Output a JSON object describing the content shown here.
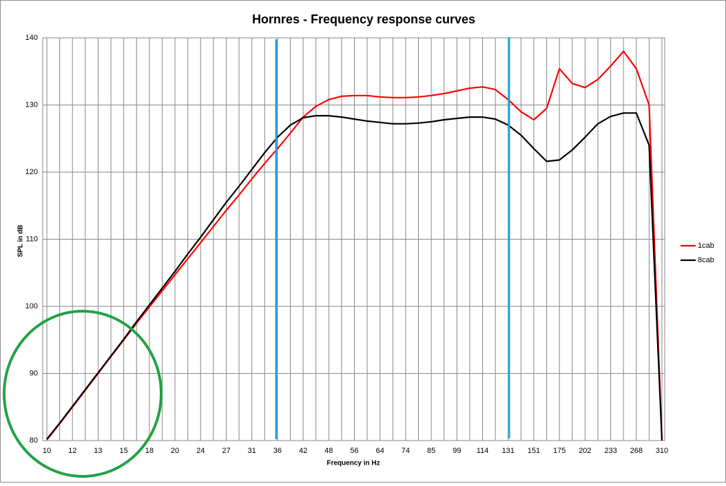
{
  "chart_data": {
    "type": "line",
    "title": "Hornres - Frequency response curves",
    "x_label": "Frequency in Hz",
    "y_label": "SPL in dB",
    "categories": [
      "10",
      null,
      "12",
      null,
      "13",
      null,
      "15",
      null,
      "18",
      null,
      "20",
      null,
      "24",
      null,
      "27",
      null,
      "31",
      null,
      "36",
      null,
      "42",
      null,
      "48",
      null,
      "56",
      null,
      "64",
      null,
      "74",
      null,
      "85",
      null,
      "99",
      null,
      "114",
      null,
      "131",
      null,
      "151",
      null,
      "175",
      null,
      "202",
      null,
      "233",
      null,
      "268",
      null,
      "310"
    ],
    "series": [
      {
        "name": "1cab",
        "color": "#ff0000",
        "values": [
          80.1,
          82.5,
          85.0,
          87.5,
          90.0,
          92.5,
          95.0,
          97.5,
          99.9,
          102.3,
          104.7,
          107.1,
          109.5,
          111.9,
          114.3,
          116.6,
          119.0,
          121.3,
          123.5,
          125.8,
          128.2,
          129.8,
          130.8,
          131.3,
          131.4,
          131.4,
          131.2,
          131.1,
          131.1,
          131.2,
          131.4,
          131.7,
          132.1,
          132.5,
          132.7,
          132.3,
          130.8,
          129.0,
          127.8,
          129.5,
          135.4,
          133.2,
          132.6,
          133.8,
          135.8,
          138.0,
          135.4,
          130.0,
          80.0
        ]
      },
      {
        "name": "8cab",
        "color": "#000000",
        "values": [
          80.2,
          82.6,
          85.1,
          87.6,
          90.1,
          92.6,
          95.1,
          97.7,
          100.2,
          102.7,
          105.2,
          107.8,
          110.3,
          112.9,
          115.5,
          117.9,
          120.4,
          122.9,
          125.2,
          127.0,
          128.1,
          128.4,
          128.4,
          128.2,
          127.9,
          127.6,
          127.4,
          127.2,
          127.2,
          127.3,
          127.5,
          127.8,
          128.0,
          128.2,
          128.2,
          127.9,
          127.0,
          125.5,
          123.5,
          121.6,
          121.8,
          123.3,
          125.2,
          127.2,
          128.3,
          128.8,
          128.8,
          124.0,
          80.0
        ]
      }
    ],
    "ylim": [
      80,
      140
    ],
    "yticks": [
      80,
      90,
      100,
      110,
      120,
      130,
      140
    ],
    "grid": true,
    "legend": "right"
  }
}
